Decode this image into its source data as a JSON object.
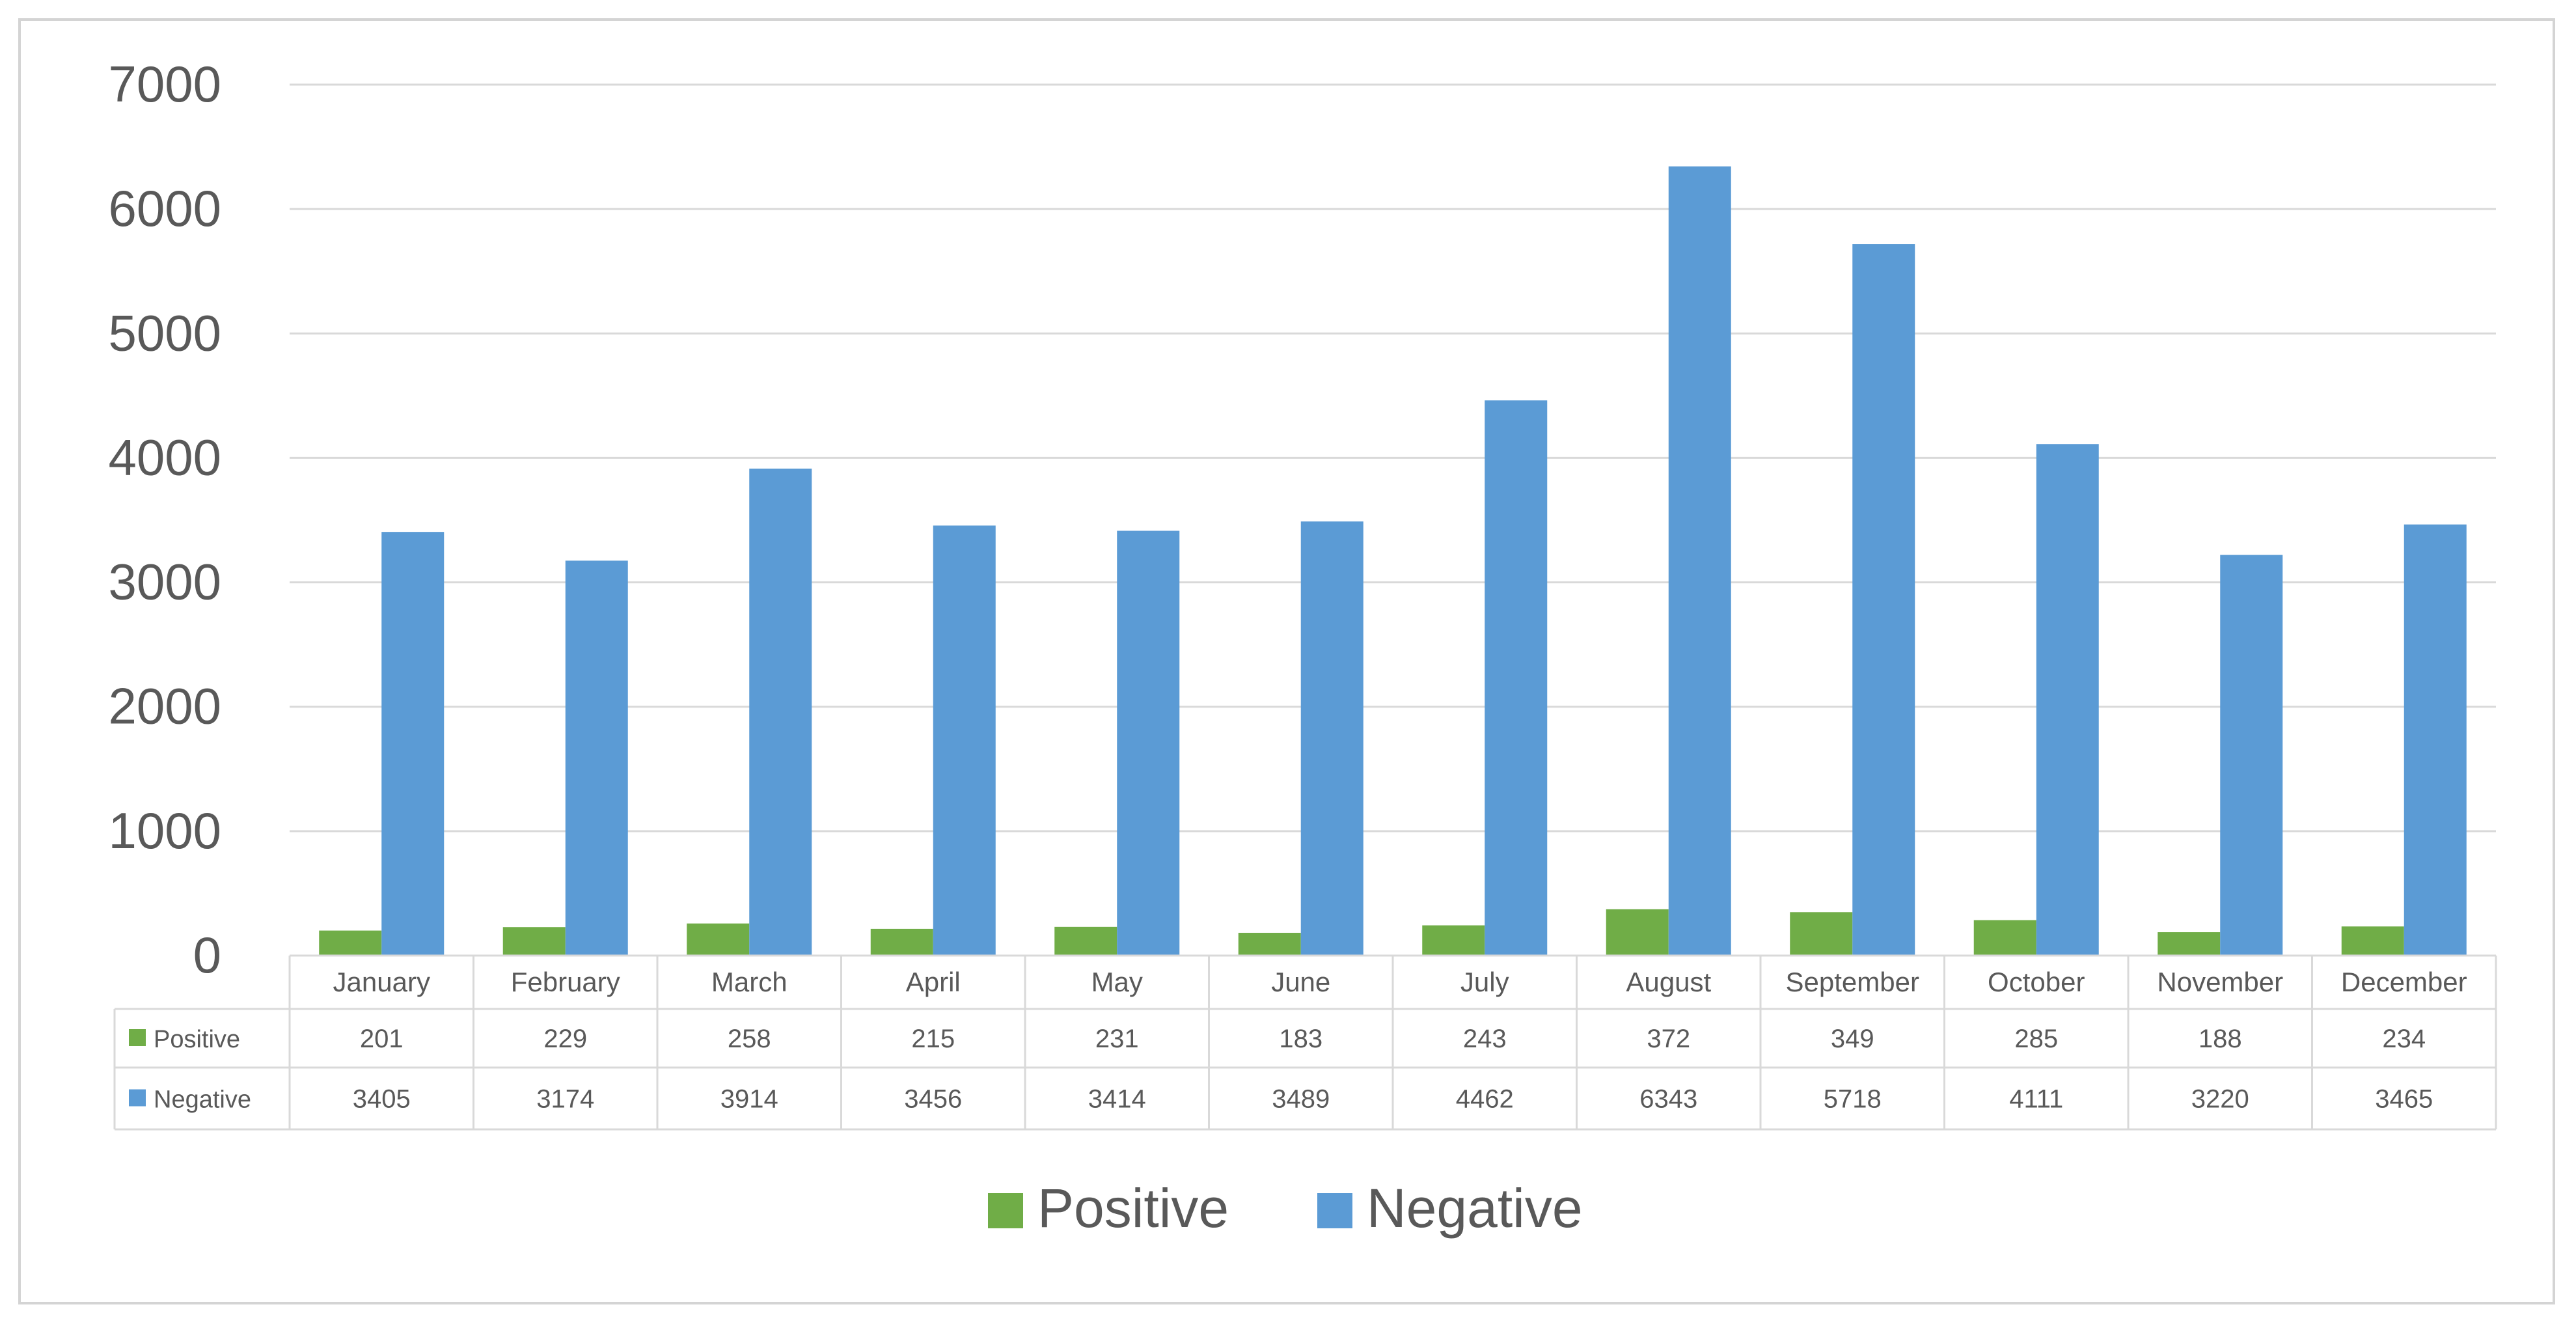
{
  "chart_data": {
    "type": "bar",
    "categories": [
      "January",
      "February",
      "March",
      "April",
      "May",
      "June",
      "July",
      "August",
      "September",
      "October",
      "November",
      "December"
    ],
    "series": [
      {
        "name": "Positive",
        "color": "#70ad47",
        "values": [
          201,
          229,
          258,
          215,
          231,
          183,
          243,
          372,
          349,
          285,
          188,
          234
        ]
      },
      {
        "name": "Negative",
        "color": "#5b9bd5",
        "values": [
          3405,
          3174,
          3914,
          3456,
          3414,
          3489,
          4462,
          6343,
          5718,
          4111,
          3220,
          3465
        ]
      }
    ],
    "yticks": [
      "0",
      "1000",
      "2000",
      "3000",
      "4000",
      "5000",
      "6000",
      "7000"
    ],
    "ylim": [
      0,
      7000
    ],
    "grid": true,
    "data_table": true,
    "legend": {
      "position": "bottom",
      "entries": [
        "Positive",
        "Negative"
      ]
    }
  }
}
